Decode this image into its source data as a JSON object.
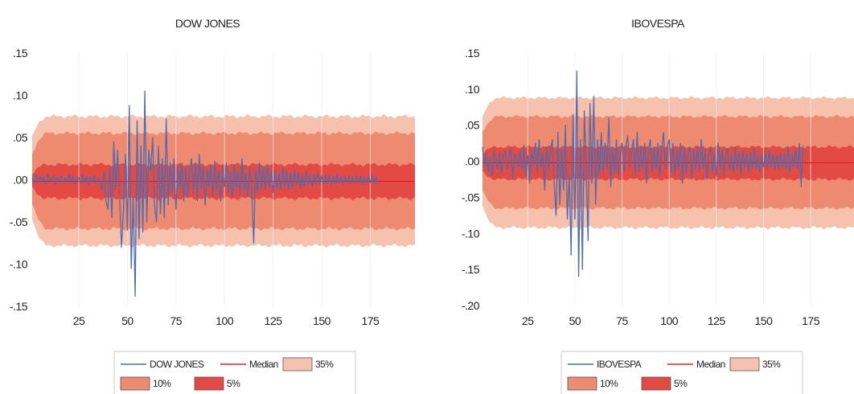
{
  "chart_data": [
    {
      "type": "line",
      "title": "DOW JONES",
      "xlabel": "",
      "ylabel": "",
      "xlim": [
        1,
        198
      ],
      "ylim": [
        -0.15,
        0.15
      ],
      "x_ticks": [
        25,
        50,
        75,
        100,
        125,
        150,
        175
      ],
      "x_tick_labels": [
        "25",
        "50",
        "75",
        "100",
        "125",
        "150",
        "175"
      ],
      "y_ticks": [
        0.15,
        0.1,
        0.05,
        0.0,
        -0.05,
        -0.1,
        -0.15
      ],
      "y_tick_labels": [
        ".15",
        ".10",
        ".05",
        ".00",
        "-.05",
        "-.10",
        "-.15"
      ],
      "grid": "vertical",
      "legend_position": "bottom",
      "colors": {
        "series": "#4c6cb3",
        "median": "#e02020",
        "band35": "#f6c1ad",
        "band10": "#ed8a6f",
        "band5": "#e24a43"
      },
      "legend": [
        {
          "label": "DOW JONES",
          "kind": "line",
          "color": "#4c6cb3"
        },
        {
          "label": "Median",
          "kind": "line",
          "color": "#e02020"
        },
        {
          "label": "35%",
          "kind": "box",
          "color": "#f6c1ad"
        },
        {
          "label": "10%",
          "kind": "box",
          "color": "#ed8a6f"
        },
        {
          "label": "5%",
          "kind": "box",
          "color": "#e24a43"
        }
      ],
      "bands": [
        {
          "name": "35%",
          "x_start": 1,
          "x_end": 198,
          "lower_start": -0.045,
          "upper_start": 0.05,
          "lower": -0.078,
          "upper": 0.075
        },
        {
          "name": "10%",
          "x_start": 1,
          "x_end": 198,
          "lower_start": -0.028,
          "upper_start": 0.03,
          "lower": -0.058,
          "upper": 0.055
        },
        {
          "name": "5%",
          "x_start": 1,
          "x_end": 198,
          "lower_start": -0.01,
          "upper_start": 0.008,
          "lower": -0.022,
          "upper": 0.018
        }
      ],
      "median": {
        "x_start": 1,
        "x_end": 198,
        "y": -0.002
      },
      "series_x_start": 1,
      "series": [
        0.002,
        -0.004,
        0.006,
        -0.003,
        0.004,
        -0.002,
        0.003,
        -0.005,
        0.006,
        -0.002,
        0.001,
        0.004,
        -0.006,
        0.003,
        -0.002,
        0.005,
        -0.004,
        0.002,
        -0.003,
        0.006,
        -0.002,
        0.004,
        -0.005,
        0.003,
        0.002,
        -0.004,
        0.006,
        -0.003,
        0.004,
        -0.006,
        0.003,
        -0.002,
        0.005,
        -0.004,
        0.002,
        -0.003,
        -0.012,
        0.01,
        -0.025,
        -0.035,
        0.015,
        -0.045,
        0.045,
        -0.01,
        0.035,
        -0.02,
        -0.08,
        -0.035,
        0.03,
        -0.06,
        0.088,
        -0.105,
        -0.02,
        -0.138,
        0.07,
        -0.07,
        0.04,
        -0.062,
        0.105,
        -0.05,
        0.035,
        0.01,
        0.05,
        -0.03,
        -0.05,
        0.04,
        -0.04,
        0.025,
        -0.045,
        0.072,
        -0.03,
        0.02,
        -0.015,
        0.025,
        -0.035,
        0.015,
        -0.01,
        0.02,
        -0.025,
        0.015,
        -0.02,
        0.01,
        0.025,
        -0.015,
        0.02,
        -0.025,
        0.03,
        -0.01,
        0.015,
        -0.03,
        0.012,
        -0.008,
        0.018,
        -0.02,
        0.022,
        -0.012,
        0.01,
        -0.025,
        0.015,
        -0.008,
        0.02,
        -0.015,
        0.01,
        -0.02,
        0.018,
        -0.01,
        0.012,
        -0.018,
        0.025,
        -0.012,
        0.008,
        -0.02,
        0.015,
        -0.01,
        -0.075,
        0.012,
        -0.015,
        0.02,
        -0.01,
        0.015,
        -0.012,
        0.018,
        -0.008,
        0.01,
        -0.015,
        0.012,
        -0.01,
        0.008,
        -0.012,
        0.015,
        -0.008,
        0.01,
        -0.012,
        0.008,
        -0.01,
        0.012,
        -0.006,
        0.008,
        -0.01,
        0.006,
        -0.008,
        0.01,
        -0.006,
        0.005,
        -0.008,
        0.006,
        -0.005,
        0.008,
        -0.006,
        0.004,
        -0.005,
        0.006,
        -0.004,
        0.005,
        -0.006,
        0.004,
        -0.005,
        0.006,
        -0.004,
        0.003,
        -0.005,
        0.004,
        -0.003,
        0.005,
        -0.004,
        0.003,
        -0.004,
        0.005,
        -0.003,
        0.004,
        -0.005,
        0.003,
        -0.004,
        0.004,
        -0.003,
        0.005,
        -0.004,
        0.003,
        -0.005
      ]
    },
    {
      "type": "line",
      "title": "IBOVESPA",
      "xlabel": "",
      "ylabel": "",
      "xlim": [
        1,
        198
      ],
      "ylim": [
        -0.2,
        0.15
      ],
      "x_ticks": [
        25,
        50,
        75,
        100,
        125,
        150,
        175
      ],
      "x_tick_labels": [
        "25",
        "50",
        "75",
        "100",
        "125",
        "150",
        "175"
      ],
      "y_ticks": [
        0.15,
        0.1,
        0.05,
        0.0,
        -0.05,
        -0.1,
        -0.15,
        -0.2
      ],
      "y_tick_labels": [
        ".15",
        ".10",
        ".05",
        ".00",
        "-.05",
        "-.10",
        "-.15",
        "-.20"
      ],
      "grid": "vertical",
      "legend_position": "bottom",
      "colors": {
        "series": "#4c6cb3",
        "median": "#e02020",
        "band35": "#f6c1ad",
        "band10": "#ed8a6f",
        "band5": "#e24a43"
      },
      "legend": [
        {
          "label": "IBOVESPA",
          "kind": "line",
          "color": "#4c6cb3"
        },
        {
          "label": "Median",
          "kind": "line",
          "color": "#e02020"
        },
        {
          "label": "35%",
          "kind": "box",
          "color": "#f6c1ad"
        },
        {
          "label": "10%",
          "kind": "box",
          "color": "#ed8a6f"
        },
        {
          "label": "5%",
          "kind": "box",
          "color": "#e24a43"
        }
      ],
      "bands": [
        {
          "name": "35%",
          "x_start": 1,
          "x_end": 198,
          "lower_start": -0.06,
          "upper_start": 0.06,
          "lower": -0.092,
          "upper": 0.088
        },
        {
          "name": "10%",
          "x_start": 1,
          "x_end": 198,
          "lower_start": -0.04,
          "upper_start": 0.04,
          "lower": -0.065,
          "upper": 0.062
        },
        {
          "name": "5%",
          "x_start": 1,
          "x_end": 198,
          "lower_start": -0.015,
          "upper_start": 0.012,
          "lower": -0.025,
          "upper": 0.02
        }
      ],
      "median": {
        "x_start": 1,
        "x_end": 198,
        "y": -0.002
      },
      "series_x_start": 1,
      "series": [
        0.02,
        -0.005,
        0.01,
        -0.015,
        0.005,
        -0.02,
        0.015,
        0.002,
        -0.01,
        0.012,
        -0.018,
        0.008,
        0.015,
        -0.01,
        0.005,
        0.018,
        -0.025,
        0.01,
        0.005,
        -0.008,
        0.015,
        -0.012,
        0.022,
        -0.02,
        0.008,
        -0.03,
        0.015,
        -0.005,
        0.025,
        -0.015,
        0.03,
        -0.008,
        0.012,
        -0.04,
        0.02,
        -0.01,
        0.015,
        0.03,
        -0.03,
        -0.075,
        0.04,
        -0.06,
        0.02,
        -0.04,
        0.05,
        -0.08,
        -0.02,
        -0.13,
        0.065,
        -0.08,
        0.125,
        -0.16,
        0.03,
        -0.15,
        0.07,
        -0.01,
        -0.11,
        0.08,
        -0.03,
        0.09,
        -0.06,
        0.03,
        -0.02,
        0.04,
        -0.015,
        0.025,
        -0.01,
        0.06,
        -0.035,
        0.02,
        -0.015,
        0.03,
        -0.02,
        0.01,
        0.025,
        -0.015,
        0.02,
        0.035,
        -0.01,
        0.015,
        0.03,
        -0.02,
        0.04,
        -0.015,
        0.02,
        -0.01,
        0.025,
        -0.03,
        0.015,
        0.03,
        -0.015,
        0.02,
        -0.01,
        0.025,
        -0.02,
        0.015,
        0.04,
        -0.01,
        0.02,
        0.03,
        -0.015,
        0.025,
        -0.02,
        0.015,
        -0.01,
        0.025,
        -0.03,
        0.02,
        -0.015,
        0.01,
        0.02,
        -0.025,
        0.015,
        -0.01,
        0.02,
        -0.015,
        0.03,
        -0.01,
        0.015,
        -0.025,
        0.01,
        0.02,
        -0.015,
        0.01,
        -0.02,
        0.025,
        -0.01,
        0.015,
        -0.02,
        0.01,
        0.018,
        -0.012,
        0.008,
        -0.015,
        0.02,
        -0.01,
        0.012,
        -0.018,
        0.015,
        -0.008,
        0.01,
        -0.015,
        0.012,
        -0.01,
        0.018,
        -0.012,
        0.008,
        -0.015,
        0.01,
        -0.008,
        0.012,
        -0.01,
        0.015,
        -0.008,
        0.01,
        -0.012,
        0.008,
        -0.01,
        0.012,
        -0.008,
        0.01,
        -0.012,
        0.02,
        -0.015,
        0.01,
        -0.008,
        0.015,
        -0.01,
        0.025,
        -0.035,
        0.022
      ]
    }
  ]
}
